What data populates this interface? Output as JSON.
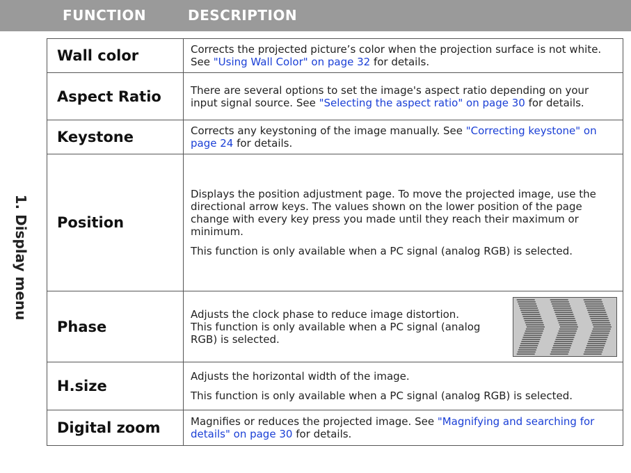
{
  "header": {
    "function": "FUNCTION",
    "description": "DESCRIPTION"
  },
  "section": "1. Display menu",
  "rows": [
    {
      "function": "Wall color",
      "description": [
        [
          {
            "text": "Corrects the projected picture’s color when the projection surface is not white. See "
          },
          {
            "link": "\"Using Wall Color\" on page 32"
          },
          {
            "text": " for details."
          }
        ]
      ]
    },
    {
      "function": "Aspect Ratio",
      "description": [
        [
          {
            "text": "There are several options to set the image's aspect ratio depending on your input signal source. See "
          },
          {
            "link": "\"Selecting the aspect ratio\" on page 30"
          },
          {
            "text": " for details."
          }
        ]
      ]
    },
    {
      "function": "Keystone",
      "description": [
        [
          {
            "text": "Corrects any keystoning of the image manually. See "
          },
          {
            "link": "\"Correcting keystone\" on page 24"
          },
          {
            "text": " for details."
          }
        ]
      ]
    },
    {
      "function": "Position",
      "description": [
        [
          {
            "text": "Displays the position adjustment page. To move the projected image, use the directional arrow keys. The values shown on the lower position of the page change with every key press you made until they reach their maximum or minimum."
          }
        ],
        [
          {
            "text": "This function is only available when a PC signal (analog RGB) is selected."
          }
        ]
      ]
    },
    {
      "function": "Phase",
      "description": [
        [
          {
            "text": "Adjusts the clock phase to reduce image distortion."
          }
        ],
        [
          {
            "text": "This function is only available when a PC signal (analog RGB) is selected."
          }
        ]
      ]
    },
    {
      "function": "H.size",
      "description": [
        [
          {
            "text": "Adjusts the horizontal width of the image."
          }
        ],
        [
          {
            "text": "This function is only available when a PC signal (analog RGB) is selected."
          }
        ]
      ]
    },
    {
      "function": "Digital zoom",
      "description": [
        [
          {
            "text": "Magnifies or reduces the projected image. See "
          },
          {
            "link": "\"Magnifying and searching for details\" on page 30"
          },
          {
            "text": " for details."
          }
        ]
      ]
    }
  ]
}
